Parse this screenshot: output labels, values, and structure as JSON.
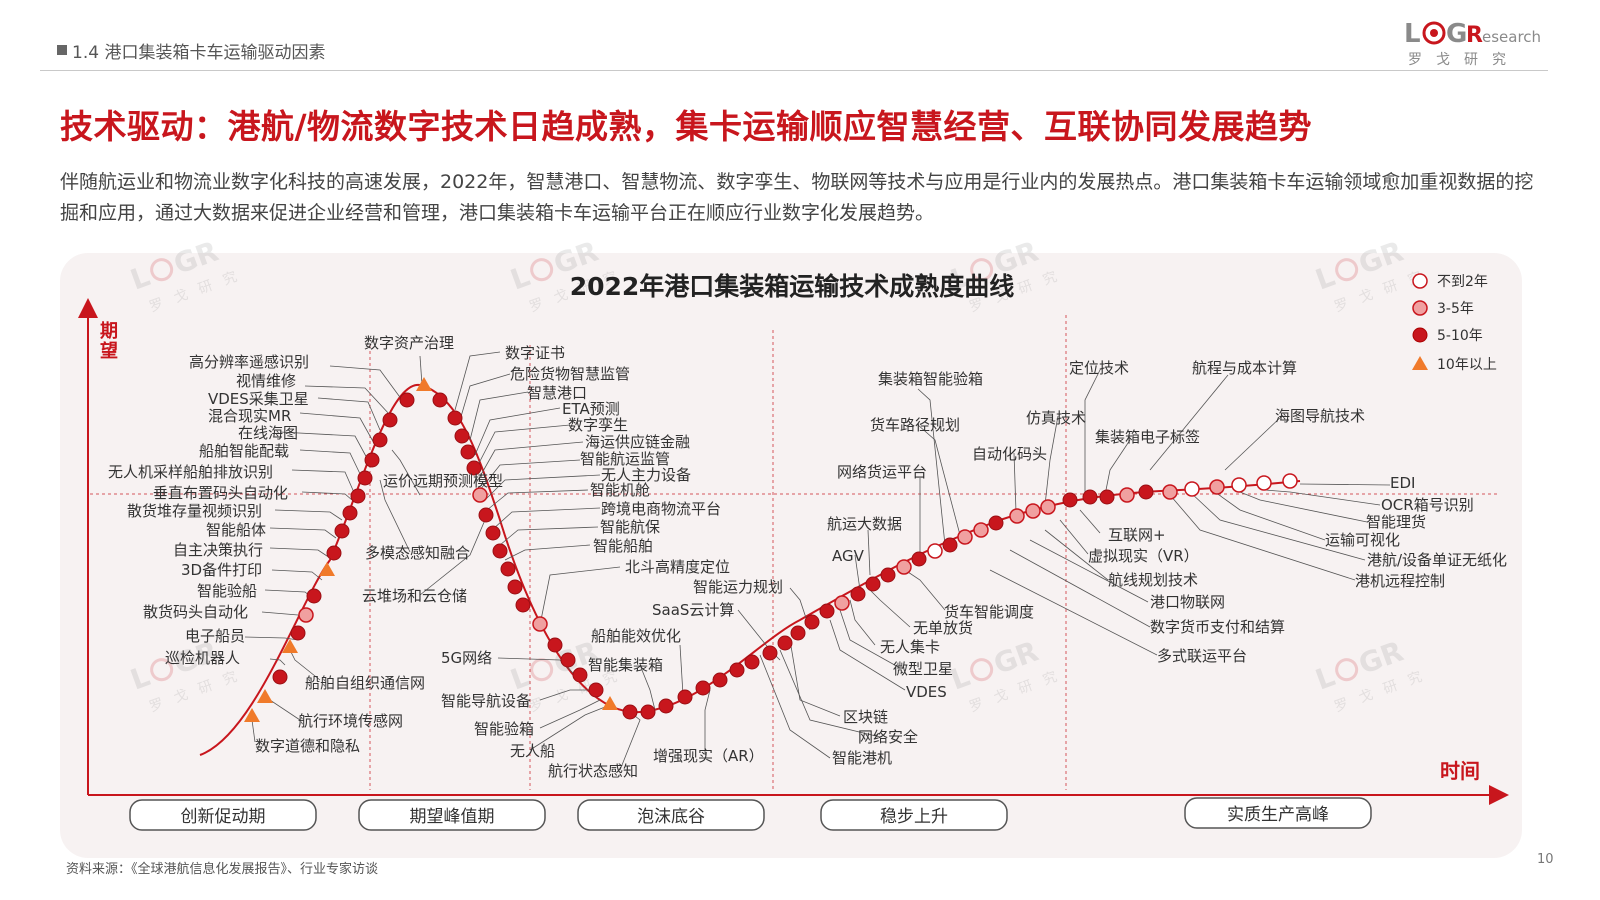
{
  "header": {
    "section": "1.4 港口集装箱卡车运输驱动因素",
    "logo": "LOGResearch",
    "logo_cn": "罗 戈 研 究"
  },
  "title": "技术驱动：港航/物流数字技术日趋成熟，集卡运输顺应智慧经营、互联协同发展趋势",
  "intro": "伴随航运业和物流业数字化科技的高速发展，2022年，智慧港口、智慧物流、数字孪生、物联网等技术与应用是行业内的发展热点。港口集装箱卡车运输领域愈加重视数据的挖掘和应用，通过大数据来促进企业经营和管理，港口集装箱卡车运输平台正在顺应行业数字化发展趋势。",
  "chart_data": {
    "type": "hype-cycle",
    "title": "2022年港口集装箱运输技术成熟度曲线",
    "ylabel": "期望",
    "xlabel": "时间",
    "legend_position": "top-right",
    "legend": [
      {
        "key": "lt2",
        "label": "不到2年",
        "marker": "circle-white"
      },
      {
        "key": "y3_5",
        "label": "3-5年",
        "marker": "circle-light-red"
      },
      {
        "key": "y5_10",
        "label": "5-10年",
        "marker": "circle-dark-red"
      },
      {
        "key": "gt10",
        "label": "10年以上",
        "marker": "triangle-orange"
      }
    ],
    "phases": [
      "创新促动期",
      "期望峰值期",
      "泡沫底谷",
      "稳步上升",
      "实质生产高峰"
    ],
    "technologies": {
      "innovation_trigger": [
        "数字道德和隐私",
        "航行环境传感网",
        "巡检机器人",
        "船舶自组织通信网",
        "电子船员",
        "散货码头自动化",
        "智能验船",
        "3D备件打印",
        "自主决策执行",
        "智能船体",
        "散货堆存量视频识别",
        "垂直布置码头自动化",
        "无人机采样船舶排放识别",
        "船舶智能配载",
        "在线海图",
        "混合现实MR",
        "VDES采集卫星",
        "视情维修",
        "高分辨率遥感识别"
      ],
      "peak": [
        "数字资产治理",
        "运价远期预测模型",
        "多模态感知融合",
        "云堆场和云仓储",
        "数字证书",
        "危险货物智慧监管",
        "智慧港口",
        "ETA预测",
        "数字孪生",
        "海运供应链金融",
        "智能航运监管",
        "无人主力设备",
        "智能机舱",
        "跨境电商物流平台",
        "智能航保",
        "智能船舶",
        "北斗高精度定位"
      ],
      "trough": [
        "5G网络",
        "智能导航设备",
        "智能验箱",
        "无人船",
        "航行状态感知",
        "智能集装箱",
        "船舶能效优化",
        "增强现实（AR）",
        "SaaS云计算",
        "智能运力规划"
      ],
      "slope": [
        "智能港机",
        "网络安全",
        "区块链",
        "VDES",
        "微型卫星",
        "无人集卡",
        "无单放货",
        "货车智能调度",
        "AGV",
        "航运大数据",
        "网络货运平台",
        "货车路径规划",
        "集装箱智能验箱",
        "自动化码头",
        "仿真技术",
        "定位技术"
      ],
      "plateau": [
        "集装箱电子标签",
        "航程与成本计算",
        "海图导航技术",
        "EDI",
        "OCR箱号识别",
        "智能理货",
        "运输可视化",
        "港航/设备单证无纸化",
        "港机远程控制",
        "互联网+",
        "虚拟现实（VR）",
        "航线规划技术",
        "港口物联网",
        "数字货币支付和结算",
        "多式联运平台"
      ]
    }
  },
  "source": "资料来源：《全球港航信息化发展报告》、行业专家访谈",
  "page_number": "10"
}
